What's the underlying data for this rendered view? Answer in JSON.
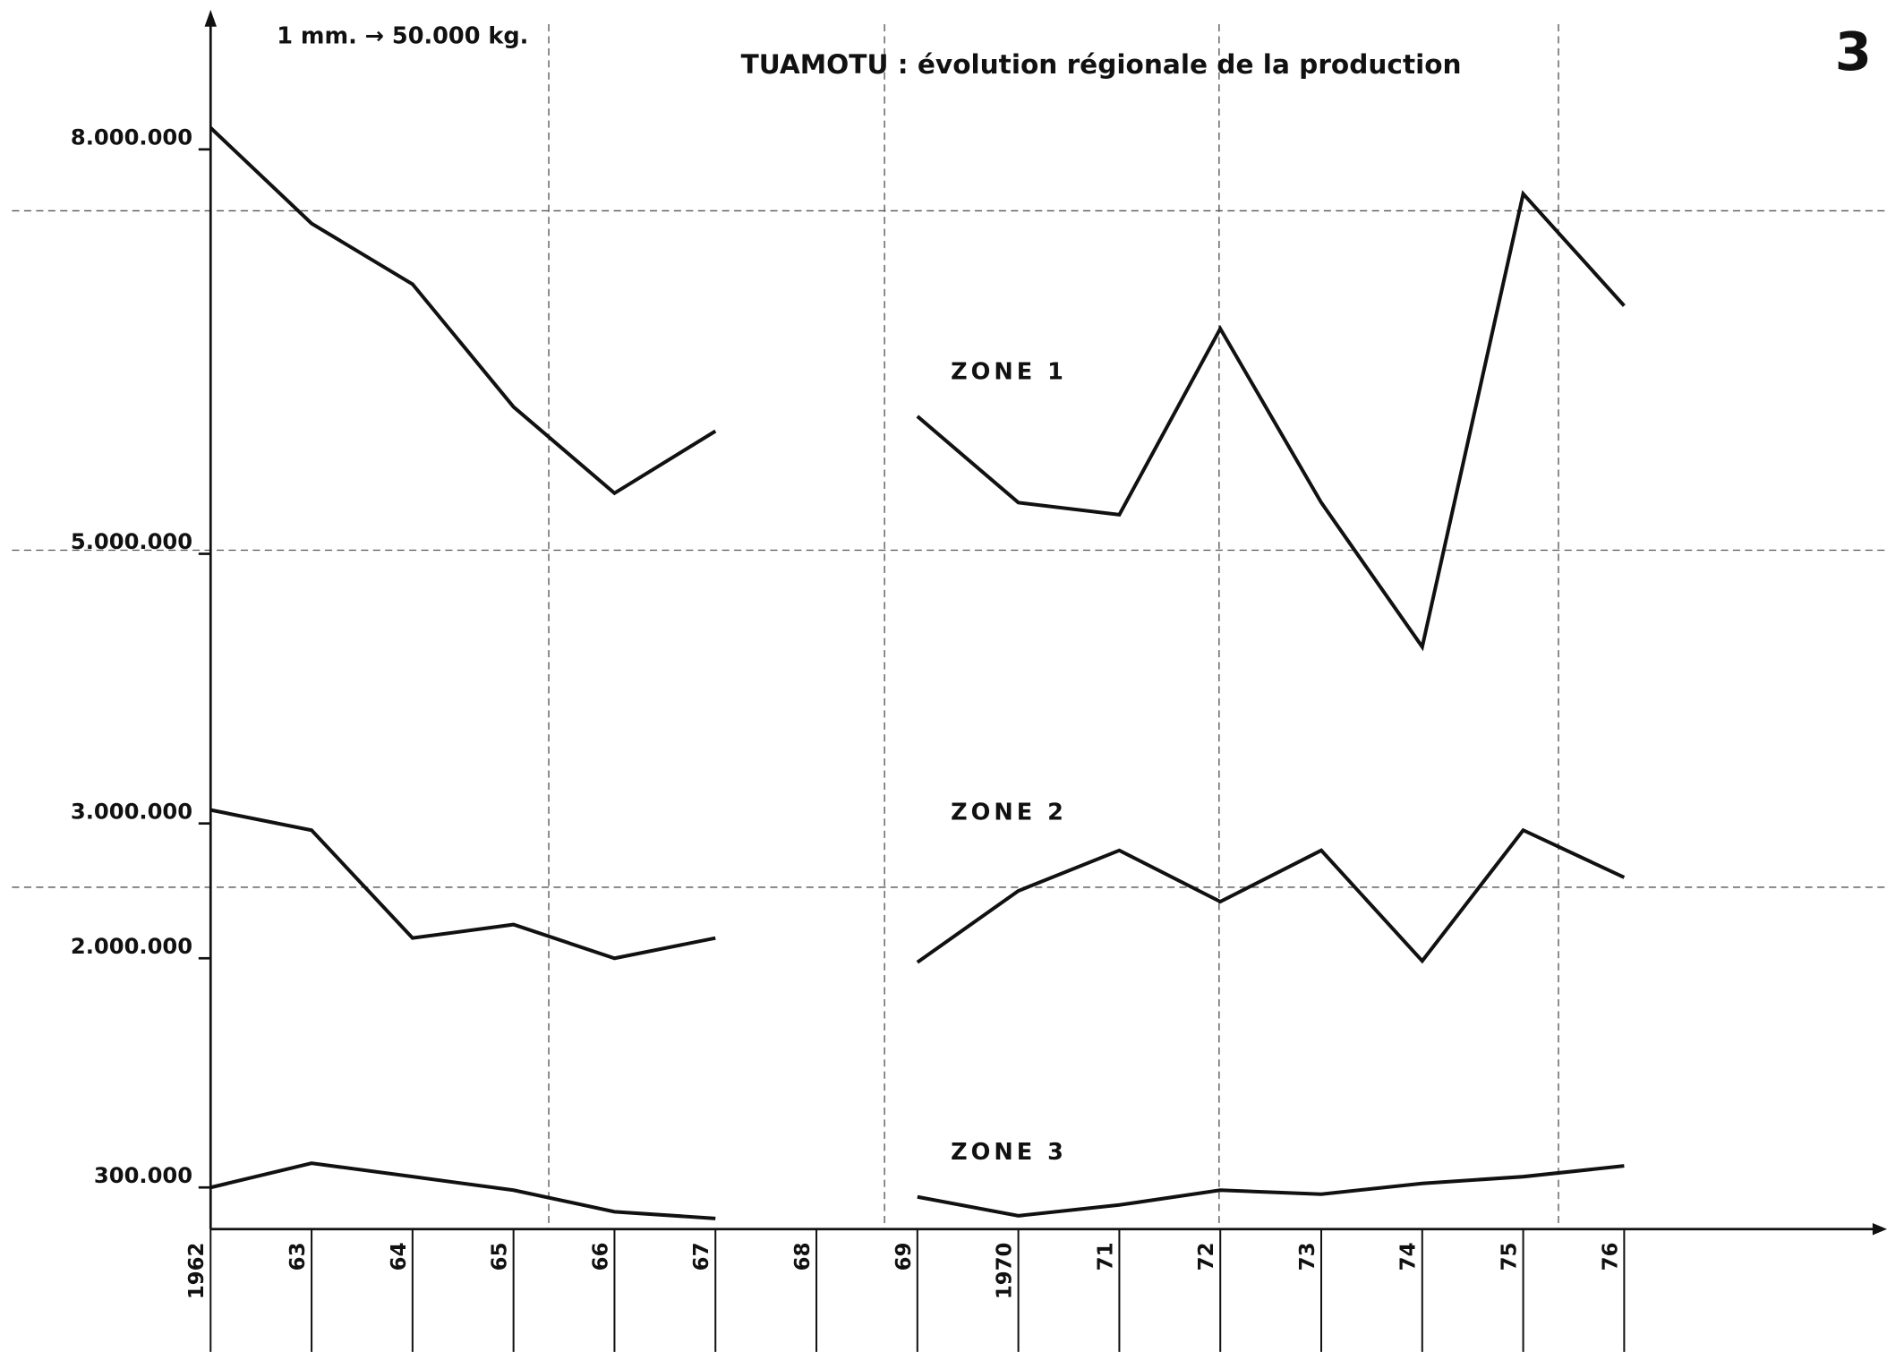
{
  "chart_data": {
    "type": "line",
    "title": "TUAMOTU : évolution régionale de la production",
    "annotation": "1 mm. → 50.000 kg.",
    "page_number": "3",
    "categories": [
      "1962",
      "63",
      "64",
      "65",
      "66",
      "67",
      "68",
      "69",
      "1970",
      "71",
      "72",
      "73",
      "74",
      "75",
      "76"
    ],
    "series": [
      {
        "name": "ZONE 1",
        "color": "#111111",
        "values": [
          8160000,
          7450000,
          7000000,
          6090000,
          5450000,
          5910000,
          null,
          6020000,
          5380000,
          5290000,
          6670000,
          5380000,
          4310000,
          7670000,
          6840000
        ]
      },
      {
        "name": "ZONE 2",
        "color": "#111111",
        "values": [
          3100000,
          2950000,
          2150000,
          2250000,
          2000000,
          2150000,
          null,
          1970000,
          2500000,
          2800000,
          2420000,
          2800000,
          1980000,
          2950000,
          2600000
        ]
      },
      {
        "name": "ZONE 3",
        "color": "#111111",
        "values": [
          300000,
          480000,
          380000,
          280000,
          120000,
          70000,
          null,
          230000,
          90000,
          170000,
          280000,
          250000,
          330000,
          380000,
          460000
        ]
      }
    ],
    "ylim": [
      0,
      9000000
    ],
    "yticks": [
      {
        "value": 300000,
        "label": "300.000"
      },
      {
        "value": 2000000,
        "label": "2.000.000"
      },
      {
        "value": 3000000,
        "label": "3.000.000"
      },
      {
        "value": 5000000,
        "label": "5.000.000"
      },
      {
        "value": 8000000,
        "label": "8.000.000"
      }
    ]
  }
}
